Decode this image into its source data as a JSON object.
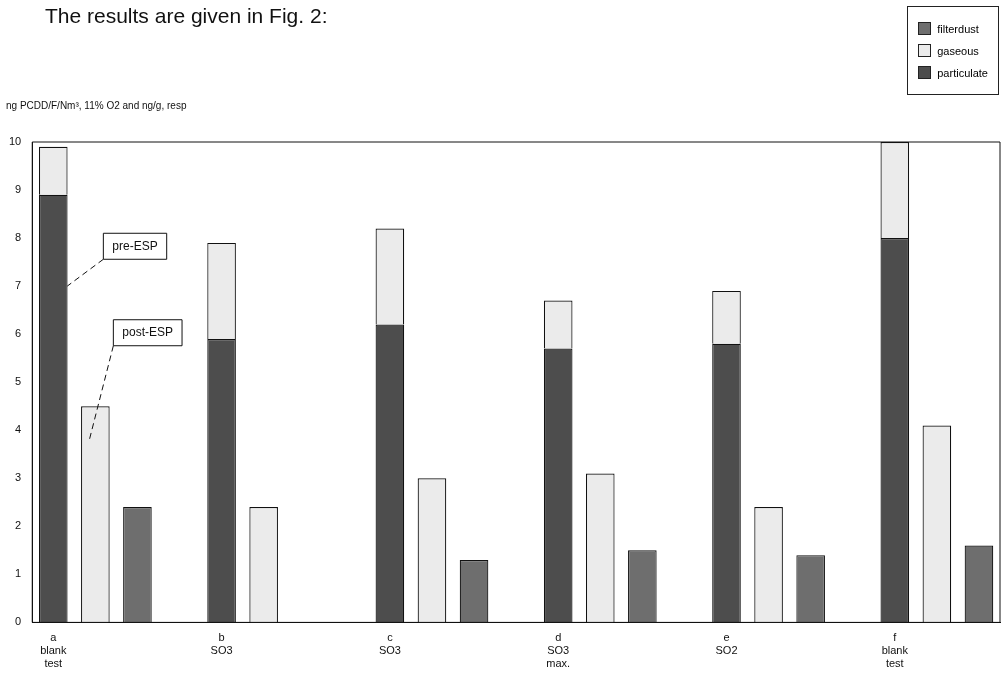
{
  "chart_data": {
    "type": "bar",
    "title": "The results are given in Fig. 2:",
    "ylabel": "ng PCDD/F/Nm³, 11% O2 and ng/g, resp",
    "categories": [
      "a\nblank\ntest",
      null,
      null,
      null,
      "b\nSO3",
      null,
      null,
      null,
      "c\nSO3",
      null,
      null,
      null,
      "d\nSO3\nmax.",
      null,
      null,
      null,
      "e\nSO2",
      null,
      null,
      null,
      "f\nblank\ntest",
      null,
      null
    ],
    "series": [
      {
        "name": "particulate",
        "color": "#4d4d4d",
        "values": [
          8.9,
          null,
          null,
          null,
          5.9,
          null,
          null,
          null,
          6.2,
          null,
          null,
          null,
          5.7,
          null,
          null,
          null,
          5.8,
          null,
          null,
          null,
          8.0,
          null,
          null
        ]
      },
      {
        "name": "gaseous",
        "color": "#ebebeb",
        "values": [
          1.0,
          4.5,
          null,
          null,
          2.0,
          2.4,
          null,
          null,
          2.0,
          3.0,
          null,
          null,
          1.0,
          3.1,
          null,
          null,
          1.1,
          2.4,
          null,
          null,
          2.0,
          4.1,
          null
        ]
      },
      {
        "name": "filterdust",
        "color": "#6e6e6e",
        "values": [
          null,
          null,
          2.4,
          null,
          null,
          null,
          null,
          null,
          null,
          null,
          1.3,
          null,
          null,
          null,
          1.5,
          null,
          null,
          null,
          1.4,
          null,
          null,
          null,
          1.6
        ]
      }
    ],
    "stacked": true,
    "ylim": [
      0,
      10
    ],
    "yticks": [
      0,
      1,
      2,
      3,
      4,
      5,
      6,
      7,
      8,
      9,
      10
    ],
    "grid": false,
    "legend": "top right",
    "annotations": [
      "pre-ESP",
      "post-ESP"
    ]
  }
}
